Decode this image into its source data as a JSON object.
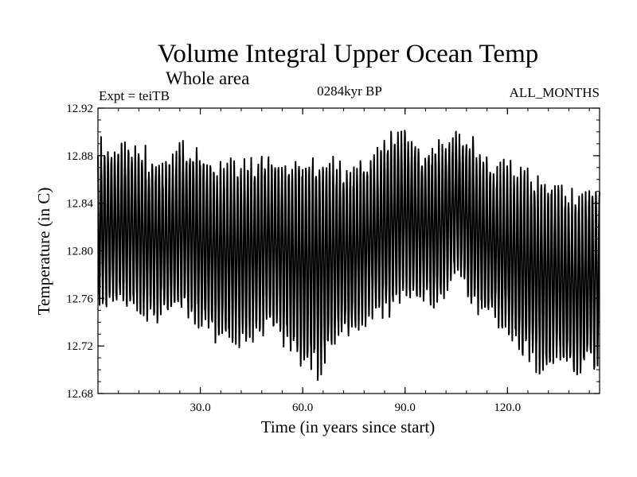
{
  "chart_data": {
    "type": "line",
    "title": "Volume Integral Upper Ocean Temp",
    "subtitle": "Whole area",
    "experiment": "Expt = teiTB",
    "period": "0284kyr BP",
    "season": "ALL_MONTHS",
    "xlabel": "Time (in years since start)",
    "ylabel": "Temperature (in C)",
    "xlim": [
      0,
      147
    ],
    "ylim": [
      12.68,
      12.92
    ],
    "x_ticks": [
      30,
      60,
      90,
      120
    ],
    "x_tick_labels": [
      "30.0",
      "60.0",
      "90.0",
      "120.0"
    ],
    "y_ticks": [
      12.68,
      12.72,
      12.76,
      12.8,
      12.84,
      12.88,
      12.92
    ],
    "y_tick_labels": [
      "12.68",
      "12.72",
      "12.76",
      "12.80",
      "12.84",
      "12.88",
      "12.92"
    ],
    "sampling": "monthly",
    "series": [
      {
        "name": "Volume integral upper ocean temperature",
        "color": "#000000",
        "annual_summary": {
          "years": [
            0,
            5,
            10,
            15,
            20,
            25,
            30,
            35,
            40,
            45,
            50,
            55,
            60,
            65,
            70,
            75,
            80,
            85,
            90,
            95,
            100,
            105,
            110,
            115,
            120,
            125,
            130,
            135,
            140,
            145,
            147
          ],
          "annual_mean": [
            12.82,
            12.82,
            12.82,
            12.81,
            12.81,
            12.82,
            12.81,
            12.8,
            12.8,
            12.8,
            12.81,
            12.8,
            12.79,
            12.79,
            12.8,
            12.8,
            12.81,
            12.82,
            12.83,
            12.82,
            12.82,
            12.84,
            12.82,
            12.81,
            12.8,
            12.79,
            12.78,
            12.78,
            12.77,
            12.78,
            12.78
          ],
          "amplitude": [
            0.065,
            0.06,
            0.065,
            0.065,
            0.06,
            0.065,
            0.07,
            0.065,
            0.07,
            0.07,
            0.065,
            0.07,
            0.08,
            0.085,
            0.07,
            0.065,
            0.06,
            0.07,
            0.065,
            0.06,
            0.065,
            0.055,
            0.065,
            0.06,
            0.065,
            0.075,
            0.075,
            0.07,
            0.07,
            0.07,
            0.07
          ]
        }
      }
    ]
  }
}
